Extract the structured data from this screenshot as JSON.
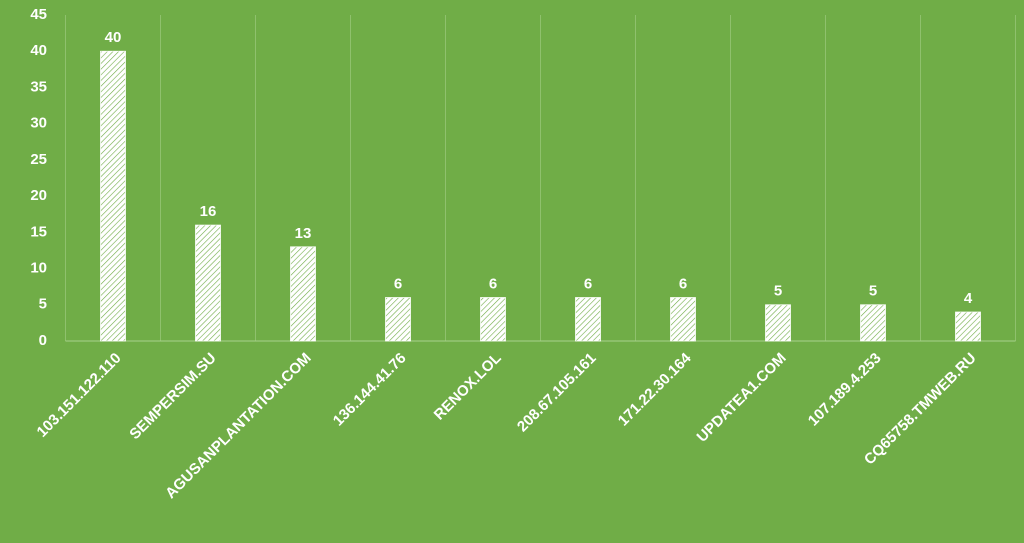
{
  "chart_data": {
    "type": "bar",
    "categories": [
      "103.151.122.110",
      "SEMPERSIM.SU",
      "AGUSANPLANTATION.COM",
      "136.144.41.76",
      "RENOX.LOL",
      "208.67.105.161",
      "171.22.30.164",
      "UPDATEA1.COM",
      "107.189.4.253",
      "CQ65758.TMWEB.RU"
    ],
    "values": [
      40,
      16,
      13,
      6,
      6,
      6,
      6,
      5,
      5,
      4
    ],
    "color": "#ffffff",
    "background": "#70ad47",
    "ylim": [
      0,
      45
    ],
    "yticks": [
      0,
      5,
      10,
      15,
      20,
      25,
      30,
      35,
      40,
      45
    ],
    "grid": true
  }
}
